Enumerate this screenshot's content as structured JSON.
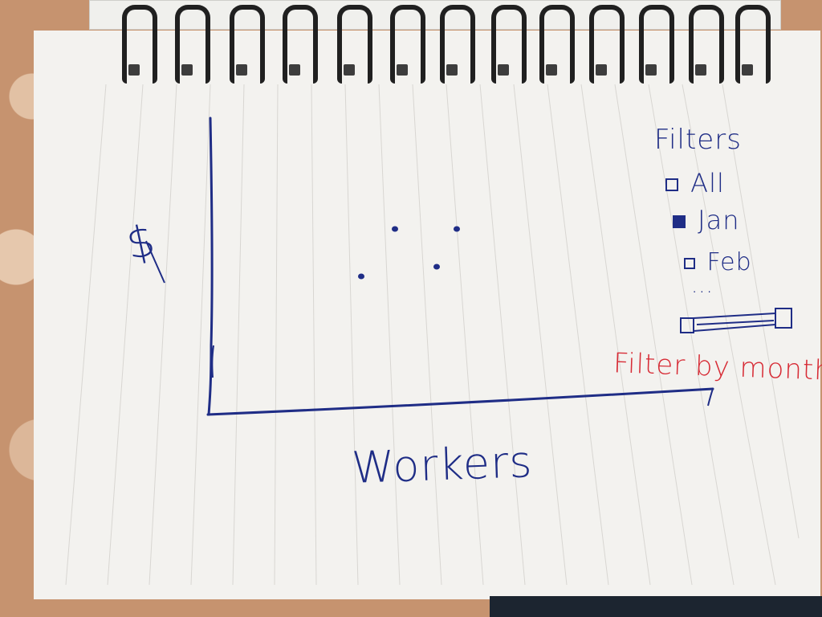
{
  "page": {
    "y_axis_label": "$",
    "x_axis_label": "Workers"
  },
  "filters": {
    "title": "Filters",
    "options": [
      {
        "label": "All",
        "selected": false
      },
      {
        "label": "Jan",
        "selected": true
      },
      {
        "label": "Feb",
        "selected": false
      }
    ],
    "more": "...",
    "slider_caption": "Filter by month"
  },
  "chart_data": {
    "type": "scatter",
    "points": [
      {
        "x": 1,
        "y": 1
      },
      {
        "x": 2,
        "y": 2
      },
      {
        "x": 3,
        "y": 1.2
      },
      {
        "x": 4,
        "y": 2
      }
    ]
  },
  "colors": {
    "ink_blue": "#1f2d86",
    "ink_red": "#d72b35",
    "paper": "#f3f2ef"
  }
}
